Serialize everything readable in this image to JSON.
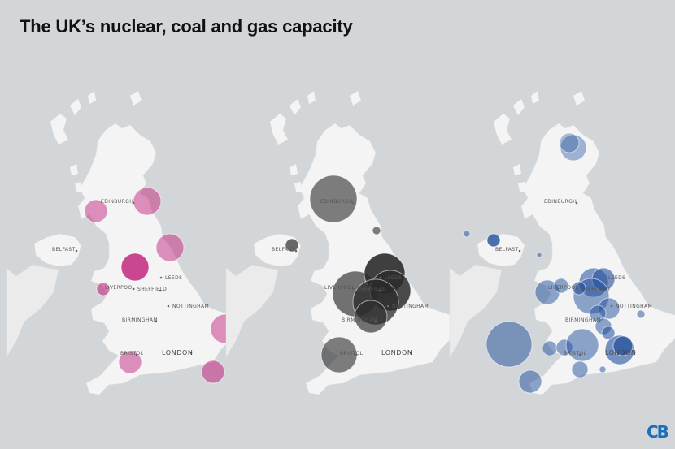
{
  "title": "The UK’s nuclear, coal and gas capacity",
  "logo_text": "CB",
  "colors": {
    "background": "#d3d6d9",
    "land": "#f4f4f4",
    "nuclear": "#c2277e",
    "coal": "#2b2b2b",
    "gas": "#1f4e9c"
  },
  "maps": [
    {
      "id": "nuclear",
      "color": "#c2277e",
      "city_labels": {
        "edinburgh": "EDINBURGH",
        "belfast": "BELFAST",
        "leeds": "LEEDS",
        "liverpool": "LIVERPOOL",
        "sheffield": "SHEFFIELD",
        "nottingham": "NOTTINGHAM",
        "birmingham": "BIRMINGHAM",
        "bristol": "BRISTOL",
        "london": "LONDON"
      }
    },
    {
      "id": "coal",
      "color": "#2b2b2b",
      "city_labels": {
        "edinburgh": "EDINBURGH",
        "belfast": "BELFAST",
        "leeds": "LEEDS",
        "liverpool": "LIVERPOOL",
        "sheffield": "SHEFFIELD",
        "nottingham": "NOTTINGHAM",
        "birmingham": "BIRMINGHAM",
        "bristol": "BRISTOL",
        "london": "LONDON"
      }
    },
    {
      "id": "gas",
      "color": "#1f4e9c",
      "city_labels": {
        "edinburgh": "EDINBURGH",
        "belfast": "BELFAST",
        "leeds": "LEEDS",
        "liverpool": "LIVERPOOL",
        "sheffield": "SHEFFIELD",
        "nottingham": "NOTTINGHAM",
        "birmingham": "BIRMINGHAM",
        "bristol": "BRISTOL",
        "london": "LONDON"
      }
    }
  ]
}
